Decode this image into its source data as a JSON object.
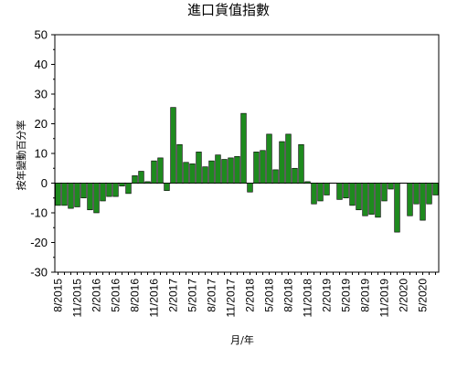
{
  "chart_data": {
    "type": "bar",
    "title": "進口貨值指數",
    "xlabel": "月/年",
    "ylabel": "按年變動百分率",
    "ylim": [
      -30,
      50
    ],
    "yticks": [
      -30,
      -20,
      -10,
      0,
      10,
      20,
      30,
      40,
      50
    ],
    "grid": false,
    "bar_color": "#1e8a1e",
    "categories": [
      "8/2015",
      "9/2015",
      "10/2015",
      "11/2015",
      "12/2015",
      "1/2016",
      "2/2016",
      "3/2016",
      "4/2016",
      "5/2016",
      "6/2016",
      "7/2016",
      "8/2016",
      "9/2016",
      "10/2016",
      "11/2016",
      "12/2016",
      "1/2017",
      "2/2017",
      "3/2017",
      "4/2017",
      "5/2017",
      "6/2017",
      "7/2017",
      "8/2017",
      "9/2017",
      "10/2017",
      "11/2017",
      "12/2017",
      "1/2018",
      "2/2018",
      "3/2018",
      "4/2018",
      "5/2018",
      "6/2018",
      "7/2018",
      "8/2018",
      "9/2018",
      "10/2018",
      "11/2018",
      "12/2018",
      "1/2019",
      "2/2019",
      "3/2019",
      "4/2019",
      "5/2019",
      "6/2019",
      "7/2019",
      "8/2019",
      "9/2019",
      "10/2019",
      "11/2019",
      "12/2019",
      "1/2020",
      "2/2020",
      "3/2020",
      "4/2020",
      "5/2020",
      "6/2020",
      "7/2020"
    ],
    "values": [
      -7.5,
      -7.5,
      -8.5,
      -8,
      -5,
      -9,
      -10,
      -6,
      -4.5,
      -4.5,
      -1,
      -3.5,
      2.5,
      4,
      0.5,
      7.5,
      8.5,
      -2.5,
      25.5,
      13,
      7,
      6.5,
      10.5,
      5.5,
      7.5,
      9.5,
      8,
      8.5,
      9,
      23.5,
      -3,
      10.5,
      11,
      16.5,
      4.5,
      14,
      16.5,
      5,
      13,
      0.5,
      -7,
      -6,
      -4,
      0,
      -5.5,
      -5,
      -7.5,
      -9,
      -11,
      -10.5,
      -11.5,
      -6,
      -2,
      -16.5,
      0,
      -11,
      -7,
      -12.5,
      -7,
      -4
    ],
    "xtick_labels": [
      "8/2015",
      "11/2015",
      "2/2016",
      "5/2016",
      "8/2016",
      "11/2016",
      "2/2017",
      "5/2017",
      "8/2017",
      "11/2017",
      "2/2018",
      "5/2018",
      "8/2018",
      "11/2018",
      "2/2019",
      "5/2019",
      "8/2019",
      "11/2019",
      "2/2020",
      "5/2020"
    ]
  }
}
